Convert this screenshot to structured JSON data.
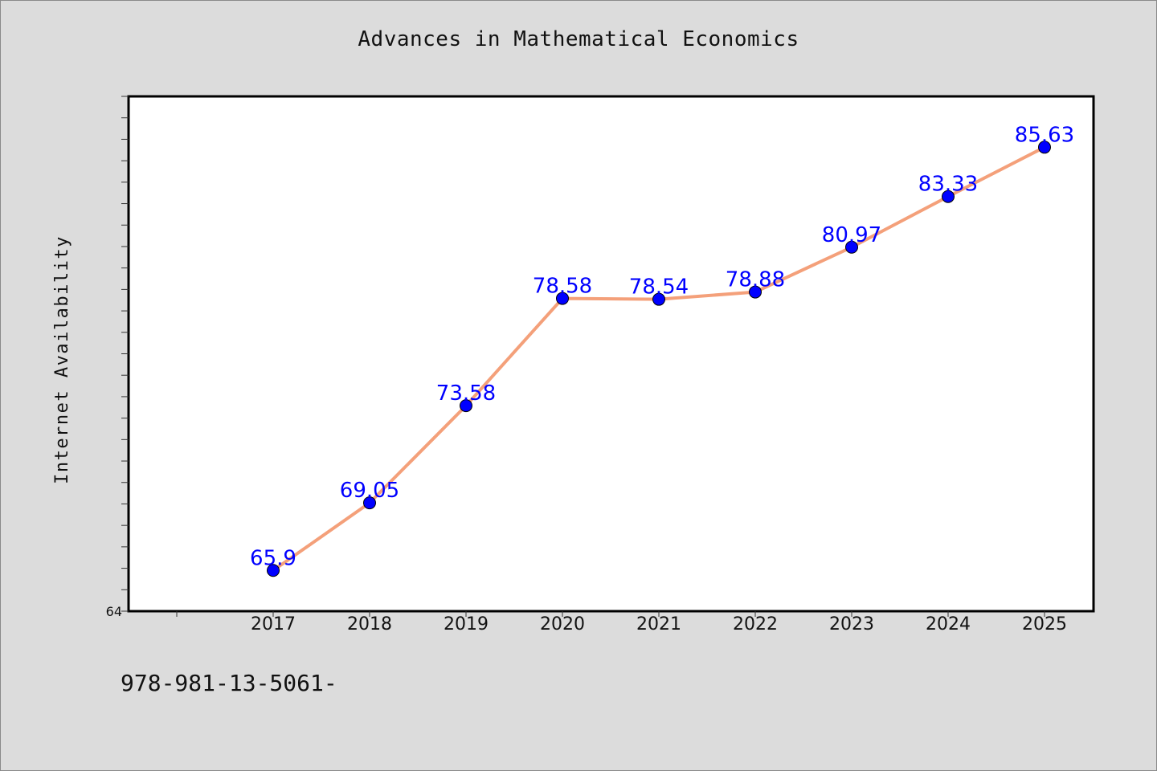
{
  "page": {
    "title": "Advances in Mathematical Economics",
    "footer_text": "978-981-13-5061-"
  },
  "chart_data": {
    "type": "line",
    "title": "Advances in Mathematical Economics",
    "xlabel": "",
    "ylabel": "Internet Availability",
    "categories": [
      "2017",
      "2018",
      "2019",
      "2020",
      "2021",
      "2022",
      "2023",
      "2024",
      "2025"
    ],
    "series": [
      {
        "values": [
          65.9,
          69.05,
          73.58,
          78.58,
          78.54,
          78.88,
          80.97,
          83.33,
          85.63
        ],
        "labels": [
          "65.9",
          "69.05",
          "73.58",
          "78.58",
          "78.54",
          "78.88",
          "80.97",
          "83.33",
          "85.63"
        ],
        "line_color": "#f4a07a",
        "marker_color": "#0000ff",
        "label_color": "#0000ff"
      }
    ],
    "ylim": [
      64,
      88
    ],
    "y_tick_labels": [
      "64"
    ],
    "y_minor_tick_step": 1,
    "grid": false,
    "legend": "none",
    "plot_background": "#ffffff",
    "page_background": "#dcdcdc"
  }
}
